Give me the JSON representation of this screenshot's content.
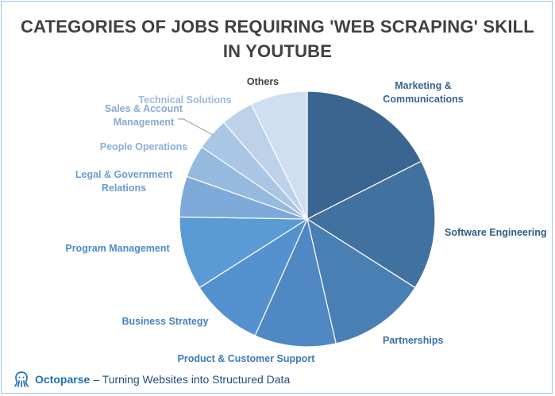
{
  "title": "CATEGORIES OF JOBS REQUIRING 'WEB SCRAPING' SKILL IN YOUTUBE",
  "footer": {
    "brand": "Octoparse",
    "tagline": "– Turning Websites into Structured Data",
    "logo_icon": "octopus-icon"
  },
  "chart_data": {
    "type": "pie",
    "title": "CATEGORIES OF JOBS REQUIRING 'WEB SCRAPING' SKILL IN YOUTUBE",
    "start_angle_deg": 0,
    "direction": "clockwise",
    "legend": "none",
    "slices": [
      {
        "label": "Marketing & Communications",
        "value": 17,
        "color": "#3a6591",
        "label_color": "#3a6591"
      },
      {
        "label": "Software Engineering",
        "value": 16,
        "color": "#41729f",
        "label_color": "#2f5c8a"
      },
      {
        "label": "Partnerships",
        "value": 12,
        "color": "#4a7fb4",
        "label_color": "#3a6fa6"
      },
      {
        "label": "Product & Customer Support",
        "value": 10,
        "color": "#4f88c2",
        "label_color": "#3f78b5"
      },
      {
        "label": "Business Strategy",
        "value": 9,
        "color": "#5591cf",
        "label_color": "#4783c4"
      },
      {
        "label": "Program Management",
        "value": 9,
        "color": "#5b9bd5",
        "label_color": "#4a8ad0"
      },
      {
        "label": "Legal & Government Relations",
        "value": 5,
        "color": "#7eaad9",
        "label_color": "#6d9bd1"
      },
      {
        "label": "People Operations",
        "value": 4,
        "color": "#96badf",
        "label_color": "#89afdc"
      },
      {
        "label": "Sales & Account Management",
        "value": 4,
        "color": "#aac6e4",
        "label_color": "#8aa9cf"
      },
      {
        "label": "Technical Solutions",
        "value": 4,
        "color": "#bdd2ea",
        "label_color": "#9cb8da"
      },
      {
        "label": "Others",
        "value": 7,
        "color": "#d0dff0",
        "label_color": "#404040"
      }
    ]
  }
}
